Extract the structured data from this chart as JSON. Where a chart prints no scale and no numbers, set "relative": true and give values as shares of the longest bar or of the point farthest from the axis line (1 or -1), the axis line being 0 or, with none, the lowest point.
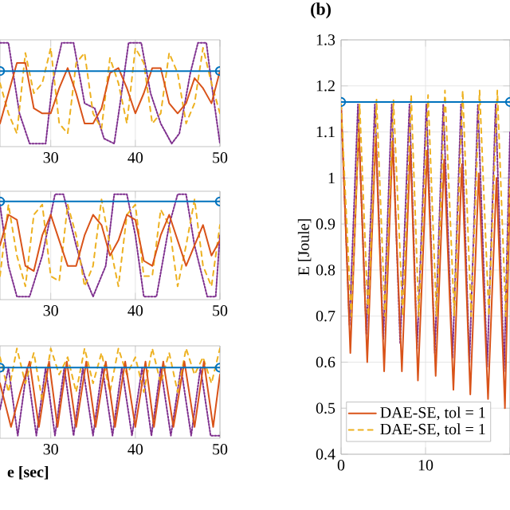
{
  "chart_data": [
    {
      "type": "line",
      "relative": true,
      "xlim": [
        24,
        50
      ],
      "xticks": [
        30,
        40,
        50
      ],
      "tick_labels": "x",
      "grid": true,
      "series": [
        {
          "color": "#7e2f8e",
          "line_style": "dotted",
          "x": [
            24,
            25,
            26.3,
            27.5,
            29.4,
            30.2,
            31.3,
            32.7,
            34,
            35.2,
            36.3,
            37.5,
            38.2,
            39.2,
            40.7,
            41.8,
            43,
            44.3,
            45.2,
            46.5,
            47.4,
            48.4,
            49,
            50
          ],
          "values": [
            1,
            1,
            0.3,
            0,
            0,
            0.6,
            1,
            1,
            0.4,
            0.35,
            0.05,
            0,
            0.4,
            1,
            1,
            0.5,
            0.2,
            0,
            0.1,
            0.7,
            1,
            1,
            0.6,
            0
          ]
        },
        {
          "color": "#edb120",
          "line_style": "dashed",
          "x": [
            24,
            25,
            26,
            27,
            28,
            29,
            30,
            31,
            32,
            33,
            34,
            35,
            36,
            37,
            38,
            39,
            40,
            41,
            42,
            43,
            44,
            45,
            46,
            47,
            48,
            49,
            50
          ],
          "values": [
            0.6,
            0.3,
            0.1,
            0.9,
            0.5,
            0.6,
            0.95,
            0.2,
            0.1,
            0.8,
            0.9,
            0.3,
            0.15,
            0.85,
            0.6,
            0.2,
            0.95,
            0.8,
            0.2,
            0.3,
            0.9,
            0.7,
            0.2,
            0.4,
            0.95,
            0.6,
            0.3
          ]
        },
        {
          "color": "#d95319",
          "line_style": "solid",
          "x": [
            24,
            25,
            26,
            27,
            28,
            29,
            30,
            31,
            32,
            33,
            34,
            35,
            36,
            37,
            38,
            39,
            40,
            41,
            42,
            43,
            44,
            45,
            46,
            47,
            48,
            49,
            50
          ],
          "values": [
            0.2,
            0.5,
            0.8,
            0.8,
            0.35,
            0.3,
            0.3,
            0.55,
            0.75,
            0.5,
            0.2,
            0.2,
            0.35,
            0.7,
            0.75,
            0.55,
            0.3,
            0.5,
            0.75,
            0.75,
            0.4,
            0.3,
            0.4,
            0.65,
            0.55,
            0.4,
            0.72
          ]
        },
        {
          "color": "#0072bd",
          "line_style": "solid",
          "marker": "circle",
          "x": [
            24,
            50
          ],
          "values": [
            0.72,
            0.72
          ]
        }
      ]
    },
    {
      "type": "line",
      "relative": true,
      "xlim": [
        24,
        50
      ],
      "xticks": [
        30,
        40,
        50
      ],
      "tick_labels": "x",
      "grid": true,
      "series": [
        {
          "color": "#7e2f8e",
          "line_style": "dotted",
          "x": [
            24,
            25,
            26,
            27.5,
            29,
            30.5,
            31.5,
            33,
            34,
            35,
            36.5,
            37.5,
            39,
            40,
            41,
            42.5,
            44,
            45,
            46,
            47,
            48.5,
            49.5,
            50
          ],
          "values": [
            0.9,
            0.3,
            0,
            0,
            0.4,
            1,
            1,
            0.5,
            0.2,
            0,
            0.3,
            1,
            1,
            0.6,
            0,
            0,
            0.7,
            1,
            1,
            0.5,
            0,
            0,
            0.6
          ]
        },
        {
          "color": "#edb120",
          "line_style": "dashed",
          "x": [
            24,
            25,
            26,
            27,
            28,
            29,
            30,
            31,
            32,
            33,
            34,
            35,
            36,
            37,
            38,
            39,
            40,
            41,
            42,
            43,
            44,
            45,
            46,
            47,
            48,
            49,
            50
          ],
          "values": [
            0.2,
            0.9,
            0.4,
            0.1,
            0.8,
            0.9,
            0.2,
            0.15,
            0.9,
            0.6,
            0.1,
            0.3,
            0.95,
            0.5,
            0.1,
            0.8,
            0.9,
            0.2,
            0.2,
            0.85,
            0.7,
            0.1,
            0.5,
            0.95,
            0.3,
            0.1,
            0.7
          ]
        },
        {
          "color": "#d95319",
          "line_style": "solid",
          "x": [
            24,
            25,
            26,
            27,
            28,
            29,
            30,
            31,
            32,
            33,
            34,
            35,
            36,
            37,
            38,
            39,
            40,
            41,
            42,
            43,
            44,
            45,
            46,
            47,
            48,
            49,
            50
          ],
          "values": [
            0.5,
            0.8,
            0.75,
            0.3,
            0.25,
            0.6,
            0.8,
            0.55,
            0.3,
            0.3,
            0.6,
            0.8,
            0.7,
            0.4,
            0.55,
            0.8,
            0.75,
            0.35,
            0.3,
            0.6,
            0.8,
            0.55,
            0.3,
            0.5,
            0.7,
            0.4,
            0.55
          ]
        },
        {
          "color": "#0072bd",
          "line_style": "solid",
          "marker": "circle",
          "x": [
            24,
            50
          ],
          "values": [
            0.93,
            0.93
          ]
        }
      ]
    },
    {
      "type": "line",
      "relative": true,
      "xlim": [
        24,
        50
      ],
      "xticks": [
        30,
        40,
        50
      ],
      "tick_labels": "x",
      "grid": true,
      "xlabel": "e [sec]",
      "series": [
        {
          "color": "#7e2f8e",
          "line_style": "dotted",
          "x": [
            24,
            25,
            26.1,
            27.2,
            28.3,
            29.4,
            30.5,
            31.6,
            32.7,
            33.8,
            35,
            36.1,
            37.3,
            38.4,
            39.6,
            40.8,
            41.9,
            43,
            44.2,
            45.4,
            46.6,
            47.7,
            48.9,
            50
          ],
          "values": [
            0.3,
            0.78,
            0,
            0.78,
            0,
            0.78,
            0,
            0.78,
            0,
            0.78,
            0,
            0.78,
            0,
            0.78,
            0,
            0.78,
            0,
            0.78,
            0,
            0.78,
            0,
            0.78,
            0,
            0
          ]
        },
        {
          "color": "#edb120",
          "line_style": "dashed",
          "x": [
            24,
            25,
            26,
            27,
            28,
            29,
            30,
            31,
            32,
            33,
            34,
            35,
            36,
            37,
            38,
            39,
            40,
            41,
            42,
            43,
            44,
            45,
            46,
            47,
            48,
            49,
            50
          ],
          "values": [
            0.9,
            0.5,
            1,
            0.6,
            0.95,
            0.4,
            1,
            0.7,
            0.9,
            0.5,
            1,
            0.6,
            0.95,
            0.5,
            1,
            0.7,
            0.9,
            0.5,
            1,
            0.6,
            0.95,
            0.5,
            1,
            0.7,
            0.9,
            0.6,
            1
          ]
        },
        {
          "color": "#d95319",
          "line_style": "solid",
          "x": [
            24,
            25.3,
            26.4,
            27.5,
            28.6,
            29.8,
            30.8,
            31.9,
            33,
            34.2,
            35.3,
            36.5,
            37.6,
            38.8,
            40,
            41.2,
            42.2,
            43.3,
            44.5,
            45.8,
            47,
            48.1,
            49.2,
            50
          ],
          "values": [
            0.6,
            0.1,
            0.5,
            0.85,
            0.1,
            0.85,
            0.1,
            0.85,
            0.1,
            0.85,
            0.1,
            0.85,
            0.1,
            0.85,
            0.1,
            0.85,
            0.1,
            0.85,
            0.1,
            0.85,
            0.1,
            0.85,
            0.1,
            0.7
          ]
        },
        {
          "color": "#0072bd",
          "line_style": "solid",
          "marker": "circle",
          "x": [
            24,
            50
          ],
          "values": [
            0.78,
            0.78
          ]
        }
      ]
    },
    {
      "type": "line",
      "title": "(b)",
      "ylabel": "E [Joule]",
      "xlim": [
        0,
        20
      ],
      "xticks": [
        0,
        10,
        {
          "value": 20,
          "label": null
        }
      ],
      "ylim": [
        0.4,
        1.3
      ],
      "yticks": [
        0.4,
        0.5,
        0.6,
        0.7,
        0.8,
        0.9,
        1,
        1.1,
        1.2,
        1.3
      ],
      "grid": true,
      "legend": "bottom left",
      "series": [
        {
          "color": "#7e2f8e",
          "line_style": "dotted",
          "x": [
            0,
            1.0,
            2.0,
            3.0,
            4.0,
            5.0,
            6.0,
            7.0,
            8.1,
            9.0,
            10.1,
            11.1,
            12.1,
            13.2,
            14.2,
            15.2,
            16.2,
            17.3,
            18.3,
            19.3,
            20
          ],
          "values": [
            1.16,
            0.68,
            1.16,
            0.66,
            1.16,
            0.65,
            1.16,
            0.64,
            1.16,
            0.63,
            1.16,
            0.62,
            1.16,
            0.61,
            1.16,
            0.6,
            1.16,
            0.59,
            1.16,
            0.58,
            1.1
          ]
        },
        {
          "name": "DAE-SE, tol = 1",
          "color": "#d95319",
          "line_style": "solid",
          "x": [
            0,
            1.1,
            2.1,
            3.1,
            4.1,
            5.1,
            6.1,
            7.2,
            8.2,
            9.1,
            10.2,
            11.2,
            12.2,
            13.3,
            14.3,
            15.3,
            16.3,
            17.4,
            18.4,
            19.4,
            20
          ],
          "values": [
            1.16,
            0.62,
            1.11,
            0.6,
            1.09,
            0.58,
            1.08,
            0.58,
            1.07,
            0.56,
            1.06,
            0.57,
            1.04,
            0.54,
            1.03,
            0.53,
            1.01,
            0.52,
            1.0,
            0.5,
            0.98
          ]
        },
        {
          "name": "DAE-SE, tol = 1",
          "color": "#edb120",
          "line_style": "dashed",
          "x": [
            0,
            1.2,
            2.2,
            3.2,
            4.2,
            5.2,
            6.2,
            7.3,
            8.3,
            9.2,
            10.3,
            11.3,
            12.3,
            13.4,
            14.4,
            15.4,
            16.4,
            17.5,
            18.5,
            19.5,
            20
          ],
          "values": [
            1.16,
            0.7,
            1.16,
            0.7,
            1.17,
            0.7,
            1.17,
            0.7,
            1.18,
            0.7,
            1.18,
            0.7,
            1.19,
            0.7,
            1.19,
            0.7,
            1.19,
            0.7,
            1.19,
            0.7,
            1.0
          ]
        },
        {
          "color": "#0072bd",
          "line_style": "solid",
          "marker": "circle",
          "x": [
            0,
            20
          ],
          "values": [
            1.165,
            1.165
          ]
        }
      ]
    }
  ]
}
